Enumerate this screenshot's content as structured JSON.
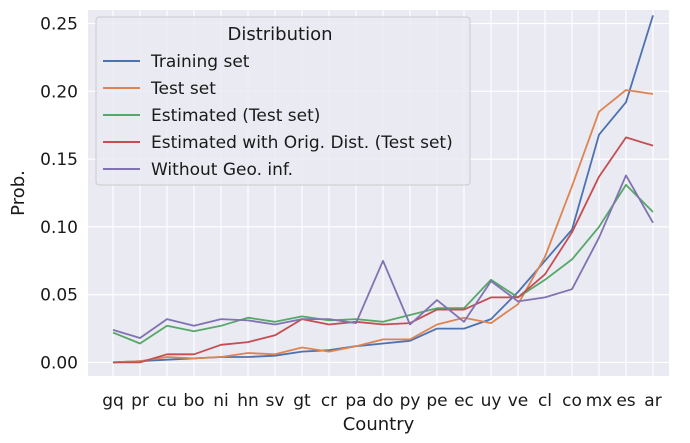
{
  "chart_data": {
    "type": "line",
    "xlabel": "Country",
    "ylabel": "Prob.",
    "ylim": [
      -0.01,
      0.26
    ],
    "yticks": [
      0.0,
      0.05,
      0.1,
      0.15,
      0.2,
      0.25
    ],
    "ytick_labels": [
      "0.00",
      "0.05",
      "0.10",
      "0.15",
      "0.20",
      "0.25"
    ],
    "grid": true,
    "legend": {
      "title": "Distribution",
      "placement": "upper-left"
    },
    "categories": [
      "gq",
      "pr",
      "cu",
      "bo",
      "ni",
      "hn",
      "sv",
      "gt",
      "cr",
      "pa",
      "do",
      "py",
      "pe",
      "ec",
      "uy",
      "ve",
      "cl",
      "co",
      "mx",
      "es",
      "ar"
    ],
    "series": [
      {
        "name": "Training set",
        "color": "#4c72b0",
        "values": [
          0.0,
          0.001,
          0.002,
          0.003,
          0.004,
          0.004,
          0.005,
          0.008,
          0.009,
          0.012,
          0.014,
          0.016,
          0.025,
          0.025,
          0.032,
          0.052,
          0.075,
          0.098,
          0.168,
          0.192,
          0.256
        ]
      },
      {
        "name": "Test set",
        "color": "#dd8452",
        "values": [
          0.0,
          0.001,
          0.004,
          0.003,
          0.004,
          0.007,
          0.006,
          0.011,
          0.008,
          0.012,
          0.017,
          0.017,
          0.028,
          0.033,
          0.029,
          0.043,
          0.078,
          0.13,
          0.185,
          0.201,
          0.198
        ]
      },
      {
        "name": "Estimated (Test set)",
        "color": "#55a868",
        "values": [
          0.022,
          0.014,
          0.027,
          0.023,
          0.027,
          0.033,
          0.03,
          0.034,
          0.031,
          0.032,
          0.03,
          0.035,
          0.04,
          0.04,
          0.061,
          0.048,
          0.061,
          0.076,
          0.1,
          0.131,
          0.111
        ]
      },
      {
        "name": "Estimated with Orig. Dist. (Test set)",
        "color": "#c44e52",
        "values": [
          0.0,
          0.0,
          0.006,
          0.006,
          0.013,
          0.015,
          0.02,
          0.032,
          0.028,
          0.03,
          0.028,
          0.029,
          0.039,
          0.039,
          0.048,
          0.048,
          0.065,
          0.096,
          0.137,
          0.166,
          0.16
        ]
      },
      {
        "name": "Without Geo. inf.",
        "color": "#8172b3",
        "values": [
          0.024,
          0.018,
          0.032,
          0.027,
          0.032,
          0.031,
          0.028,
          0.032,
          0.032,
          0.029,
          0.075,
          0.028,
          0.046,
          0.03,
          0.06,
          0.045,
          0.048,
          0.054,
          0.092,
          0.138,
          0.103
        ]
      }
    ]
  }
}
